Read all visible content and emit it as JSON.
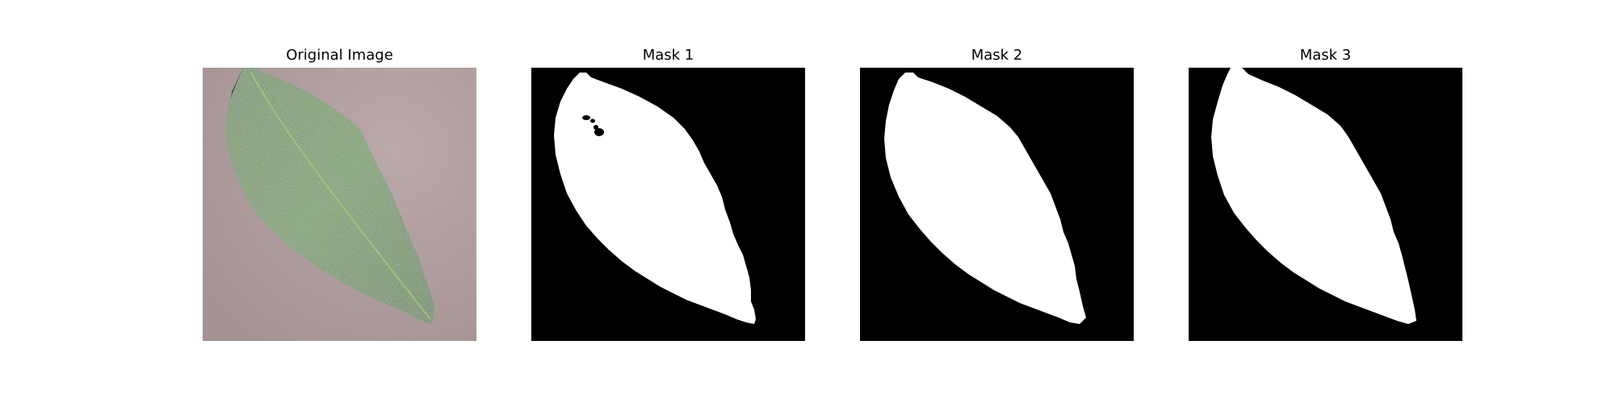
{
  "figure": {
    "panels": [
      {
        "title": "Original Image",
        "kind": "photo",
        "subject": "leaf-photo"
      },
      {
        "title": "Mask 1",
        "kind": "mask",
        "subject": "leaf-mask"
      },
      {
        "title": "Mask 2",
        "kind": "mask",
        "subject": "leaf-mask"
      },
      {
        "title": "Mask 3",
        "kind": "mask",
        "subject": "leaf-mask"
      }
    ],
    "colors": {
      "background": "#ffffff",
      "mask_foreground": "#ffffff",
      "mask_background": "#000000",
      "leaf_dark": "#2f5a2a",
      "leaf_mid": "#4d7a3d",
      "leaf_vein": "#a9c27a",
      "surface": "#b7a5a5"
    }
  }
}
